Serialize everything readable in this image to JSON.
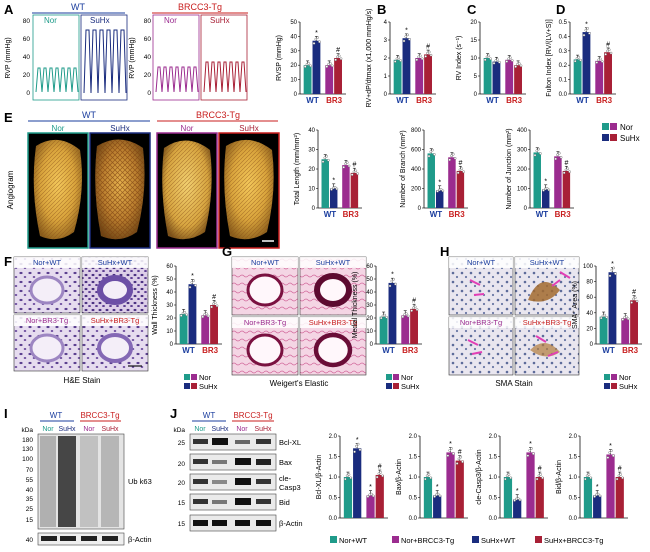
{
  "colors": {
    "wt_nor": "#1f9b8a",
    "wt_suhx": "#1a2c7e",
    "br3_nor": "#9b2c8f",
    "br3_suhx": "#a82036",
    "wt_label": "#1a3d9e",
    "br3_label": "#c81e1e"
  },
  "panels": {
    "A": {
      "letter": "A",
      "wt_title": "WT",
      "br3_title": "BRCC3-Tg",
      "nor": "Nor",
      "suhx": "SuHx",
      "trace_ylabel": "RVP (mmHg)",
      "trace_ticks": [
        "0",
        "20",
        "40",
        "60",
        "80"
      ]
    },
    "B": {
      "letter": "B"
    },
    "C": {
      "letter": "C"
    },
    "D": {
      "letter": "D"
    },
    "E": {
      "letter": "E",
      "wt_title": "WT",
      "br3_title": "BRCC3-Tg",
      "nor": "Nor",
      "suhx": "SuHx",
      "side_label": "Angiogram"
    },
    "F": {
      "letter": "F",
      "stain": "H&E Stain",
      "tiles": [
        "Nor+WT",
        "SuHx+WT",
        "Nor+BR3-Tg",
        "SuHx+BR3-Tg"
      ]
    },
    "G": {
      "letter": "G",
      "stain": "Weigert's Elastic",
      "tiles": [
        "Nor+WT",
        "SuHx+WT",
        "Nor+BR3-Tg",
        "SuHx+BR3-Tg"
      ]
    },
    "H": {
      "letter": "H",
      "stain": "SMA Stain",
      "tiles": [
        "Nor+WT",
        "SuHx+WT",
        "Nor+BR3-Tg",
        "SuHx+BR3-Tg"
      ]
    },
    "I": {
      "letter": "I",
      "wt_title": "WT",
      "br3_title": "BRCC3-Tg",
      "lanes": [
        "Nor",
        "SuHx",
        "Nor",
        "SuHx"
      ],
      "kda": [
        "kDa",
        "180",
        "130",
        "100",
        "70",
        "55",
        "40",
        "35",
        "25",
        "15",
        "40"
      ],
      "band_labels": [
        "Ub k63",
        "β-Actin"
      ]
    },
    "J": {
      "letter": "J",
      "wt_title": "WT",
      "br3_title": "BRCC3-Tg",
      "lanes": [
        "Nor",
        "SuHx",
        "Nor",
        "SuHx"
      ],
      "kda": [
        "kDa",
        "25",
        "20",
        "20",
        "15",
        "15",
        "40"
      ],
      "band_labels": [
        "Bcl-XL",
        "Bax",
        "cle-",
        "Casp3",
        "Bid",
        "β-Actin"
      ],
      "legend": [
        "Nor+WT",
        "Nor+BRCC3-Tg",
        "SuHx+WT",
        "SuHx+BRCC3-Tg"
      ]
    },
    "legend_two": [
      "Nor",
      "SuHx"
    ]
  },
  "chart_data": [
    {
      "id": "RVSP",
      "type": "bar",
      "ylabel": "RVSP (mmHg)",
      "categories": [
        "WT",
        "BR3"
      ],
      "yticks": [
        "0",
        "10",
        "20",
        "30",
        "40",
        "50"
      ],
      "ylim": [
        0,
        50
      ],
      "series": [
        {
          "name": "Nor",
          "values": [
            20,
            20
          ]
        },
        {
          "name": "SuHx",
          "values": [
            37,
            25
          ]
        }
      ],
      "marks": [
        "",
        "*",
        "",
        "#"
      ]
    },
    {
      "id": "dPdt",
      "type": "bar",
      "ylabel": "RV+dP/dtmax (x1,000 mmHg/s)",
      "categories": [
        "WT",
        "BR3"
      ],
      "yticks": [
        "0",
        "1",
        "2",
        "3",
        "4"
      ],
      "ylim": [
        0,
        4
      ],
      "series": [
        {
          "name": "Nor",
          "values": [
            1.9,
            2.0
          ]
        },
        {
          "name": "SuHx",
          "values": [
            3.1,
            2.2
          ]
        }
      ],
      "marks": [
        "",
        "*",
        "",
        "#"
      ]
    },
    {
      "id": "RVindex",
      "type": "bar",
      "ylabel": "RV Index (s⁻¹)",
      "categories": [
        "WT",
        "BR3"
      ],
      "yticks": [
        "0",
        "5",
        "10",
        "15",
        "20"
      ],
      "ylim": [
        0,
        20
      ],
      "series": [
        {
          "name": "Nor",
          "values": [
            10,
            9.5
          ]
        },
        {
          "name": "SuHx",
          "values": [
            9,
            8
          ]
        }
      ],
      "marks": [
        "",
        "",
        "",
        ""
      ]
    },
    {
      "id": "Fulton",
      "type": "bar",
      "ylabel": "Fulton Index [RV/(LV+S)]",
      "categories": [
        "WT",
        "BR3"
      ],
      "yticks": [
        "0.0",
        "0.1",
        "0.2",
        "0.3",
        "0.4",
        "0.5"
      ],
      "ylim": [
        0,
        0.5
      ],
      "series": [
        {
          "name": "Nor",
          "values": [
            0.24,
            0.23
          ]
        },
        {
          "name": "SuHx",
          "values": [
            0.43,
            0.29
          ]
        }
      ],
      "marks": [
        "",
        "*",
        "",
        "#"
      ]
    },
    {
      "id": "TotalLength",
      "type": "bar",
      "ylabel": "Total Length (mm/mm²)",
      "categories": [
        "WT",
        "BR3"
      ],
      "yticks": [
        "0",
        "10",
        "20",
        "30",
        "40"
      ],
      "ylim": [
        0,
        40
      ],
      "series": [
        {
          "name": "Nor",
          "values": [
            25,
            22
          ]
        },
        {
          "name": "SuHx",
          "values": [
            10,
            18
          ]
        }
      ],
      "marks": [
        "",
        "*",
        "",
        "#"
      ]
    },
    {
      "id": "Branch",
      "type": "bar",
      "ylabel": "Number of Branch (mm²)",
      "categories": [
        "WT",
        "BR3"
      ],
      "yticks": [
        "0",
        "200",
        "400",
        "600",
        "800"
      ],
      "ylim": [
        0,
        800
      ],
      "series": [
        {
          "name": "Nor",
          "values": [
            560,
            520
          ]
        },
        {
          "name": "SuHx",
          "values": [
            180,
            380
          ]
        }
      ],
      "marks": [
        "",
        "*",
        "",
        "#"
      ]
    },
    {
      "id": "Junction",
      "type": "bar",
      "ylabel": "Number of Junction (mm²)",
      "categories": [
        "WT",
        "BR3"
      ],
      "yticks": [
        "0",
        "100",
        "200",
        "300",
        "400"
      ],
      "ylim": [
        0,
        400
      ],
      "series": [
        {
          "name": "Nor",
          "values": [
            285,
            265
          ]
        },
        {
          "name": "SuHx",
          "values": [
            95,
            190
          ]
        }
      ],
      "marks": [
        "",
        "*",
        "",
        "#"
      ]
    },
    {
      "id": "WallThickness",
      "type": "bar",
      "ylabel": "Wall Thickness (%)",
      "categories": [
        "WT",
        "BR3"
      ],
      "yticks": [
        "0",
        "10",
        "20",
        "30",
        "40",
        "50",
        "60"
      ],
      "ylim": [
        0,
        60
      ],
      "series": [
        {
          "name": "Nor",
          "values": [
            23,
            22
          ]
        },
        {
          "name": "SuHx",
          "values": [
            46,
            30
          ]
        }
      ],
      "marks": [
        "",
        "*",
        "",
        "#"
      ]
    },
    {
      "id": "MedialThickness",
      "type": "bar",
      "ylabel": "Medial Thickness (%)",
      "categories": [
        "WT",
        "BR3"
      ],
      "yticks": [
        "0",
        "10",
        "20",
        "30",
        "40",
        "50",
        "60"
      ],
      "ylim": [
        0,
        60
      ],
      "series": [
        {
          "name": "Nor",
          "values": [
            21,
            22
          ]
        },
        {
          "name": "SuHx",
          "values": [
            47,
            27
          ]
        }
      ],
      "marks": [
        "",
        "*",
        "",
        "#"
      ]
    },
    {
      "id": "SMA",
      "type": "bar",
      "ylabel": "SMA⁺ Area (%)",
      "categories": [
        "WT",
        "BR3"
      ],
      "yticks": [
        "0",
        "20",
        "40",
        "60",
        "80",
        "100"
      ],
      "ylim": [
        0,
        100
      ],
      "series": [
        {
          "name": "Nor",
          "values": [
            35,
            33
          ]
        },
        {
          "name": "SuHx",
          "values": [
            92,
            56
          ]
        }
      ],
      "marks": [
        "",
        "*",
        "",
        "#"
      ]
    },
    {
      "id": "BclXL",
      "type": "bar",
      "ylabel": "Bcl-XL/β-Actin",
      "categories": [
        "",
        ""
      ],
      "yticks": [
        "0.0",
        "0.5",
        "1.0",
        "1.5",
        "2.0"
      ],
      "ylim": [
        0,
        2
      ],
      "values4": [
        1.0,
        1.7,
        0.55,
        1.05
      ],
      "marks": [
        "",
        "*",
        "*",
        "#"
      ]
    },
    {
      "id": "Bax",
      "type": "bar",
      "ylabel": "Bax/β-Actin",
      "categories": [
        "",
        ""
      ],
      "yticks": [
        "0.0",
        "0.5",
        "1.0",
        "1.5",
        "2.0"
      ],
      "ylim": [
        0,
        2
      ],
      "values4": [
        1.0,
        0.55,
        1.6,
        1.4
      ],
      "marks": [
        "",
        "*",
        "*",
        "#"
      ]
    },
    {
      "id": "Casp3",
      "type": "bar",
      "ylabel": "cle-Casp3/β-Actin",
      "categories": [
        "",
        ""
      ],
      "yticks": [
        "0.0",
        "0.5",
        "1.0",
        "1.5",
        "2.0"
      ],
      "ylim": [
        0,
        2
      ],
      "values4": [
        1.0,
        0.45,
        1.6,
        1.0
      ],
      "marks": [
        "",
        "*",
        "*",
        "#"
      ]
    },
    {
      "id": "Bid",
      "type": "bar",
      "ylabel": "Bid/β-Actin",
      "categories": [
        "",
        ""
      ],
      "yticks": [
        "0.0",
        "0.5",
        "1.0",
        "1.5",
        "2.0"
      ],
      "ylim": [
        0,
        2
      ],
      "values4": [
        1.0,
        0.55,
        1.55,
        1.0
      ],
      "marks": [
        "",
        "*",
        "*",
        "#"
      ]
    }
  ]
}
